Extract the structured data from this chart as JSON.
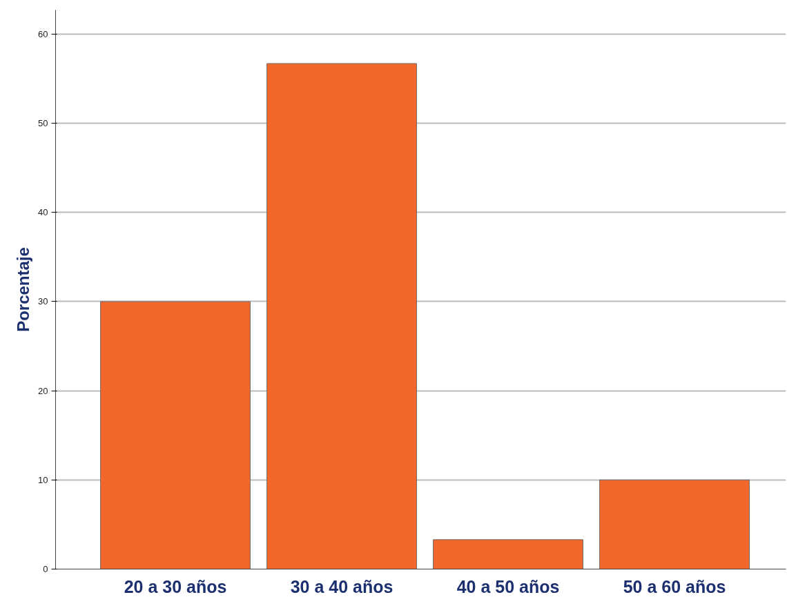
{
  "chart_data": {
    "type": "bar",
    "ylabel": "Porcentaje",
    "categories": [
      "20 a 30 años",
      "30 a 40 años",
      "40 a 50 años",
      "50 a 60 años"
    ],
    "values": [
      30.0,
      56.7,
      3.3,
      10.0
    ],
    "color": "#f2682c",
    "ylim": [
      0,
      62.7
    ],
    "yticks": [
      0,
      10,
      20,
      30,
      40,
      50,
      60
    ],
    "grid": "y"
  }
}
